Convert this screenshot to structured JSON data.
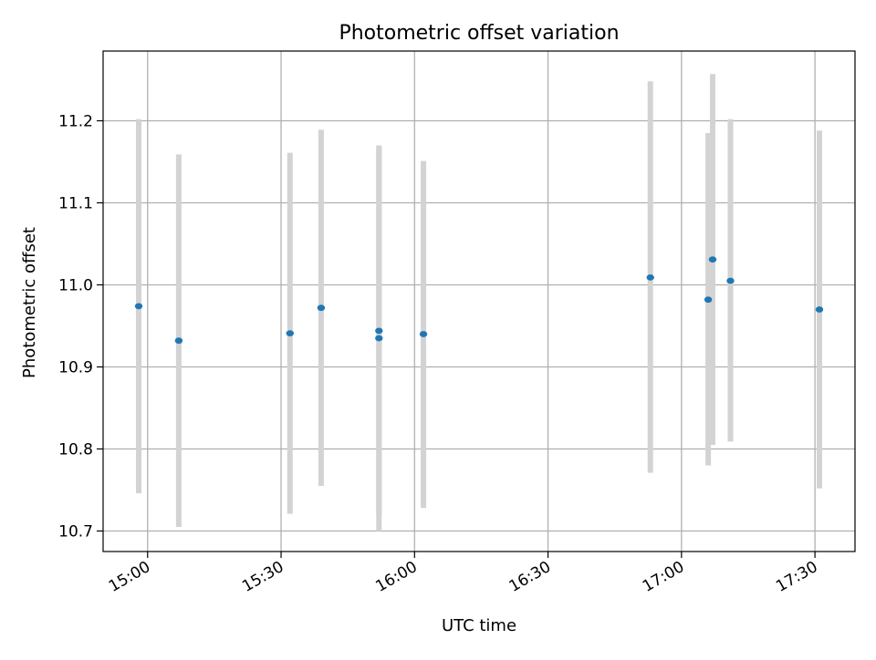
{
  "chart_data": {
    "type": "scatter",
    "title": "Photometric offset variation",
    "xlabel": "UTC time",
    "ylabel": "Photometric offset",
    "x_type": "time",
    "xlim": [
      "14:50",
      "17:39"
    ],
    "ylim": [
      10.675,
      11.285
    ],
    "x_ticks": [
      "15:00",
      "15:30",
      "16:00",
      "16:30",
      "17:00",
      "17:30"
    ],
    "y_ticks": [
      "10.7",
      "10.8",
      "10.9",
      "11.0",
      "11.1",
      "11.2"
    ],
    "grid": true,
    "legend": "none",
    "series": [
      {
        "points": [
          {
            "x": "14:58",
            "y": 10.974,
            "err_low": 10.746,
            "err_high": 11.202
          },
          {
            "x": "15:07",
            "y": 10.932,
            "err_low": 10.705,
            "err_high": 11.159
          },
          {
            "x": "15:32",
            "y": 10.941,
            "err_low": 10.721,
            "err_high": 11.161
          },
          {
            "x": "15:39",
            "y": 10.972,
            "err_low": 10.755,
            "err_high": 11.189
          },
          {
            "x": "15:52",
            "y": 10.944,
            "err_low": 10.719,
            "err_high": 11.169
          },
          {
            "x": "15:52",
            "y": 10.935,
            "err_low": 10.7,
            "err_high": 11.17
          },
          {
            "x": "16:02",
            "y": 10.94,
            "err_low": 10.728,
            "err_high": 11.151
          },
          {
            "x": "16:53",
            "y": 11.009,
            "err_low": 10.771,
            "err_high": 11.248
          },
          {
            "x": "17:06",
            "y": 10.982,
            "err_low": 10.78,
            "err_high": 11.185
          },
          {
            "x": "17:07",
            "y": 11.031,
            "err_low": 10.805,
            "err_high": 11.257
          },
          {
            "x": "17:11",
            "y": 11.005,
            "err_low": 10.809,
            "err_high": 11.202
          },
          {
            "x": "17:31",
            "y": 10.97,
            "err_low": 10.752,
            "err_high": 11.188
          }
        ]
      }
    ],
    "colors": {
      "points": "#1f77b4",
      "errorbars": "#d3d3d3",
      "grid": "#b0b0b0",
      "axes": "#000000"
    }
  }
}
